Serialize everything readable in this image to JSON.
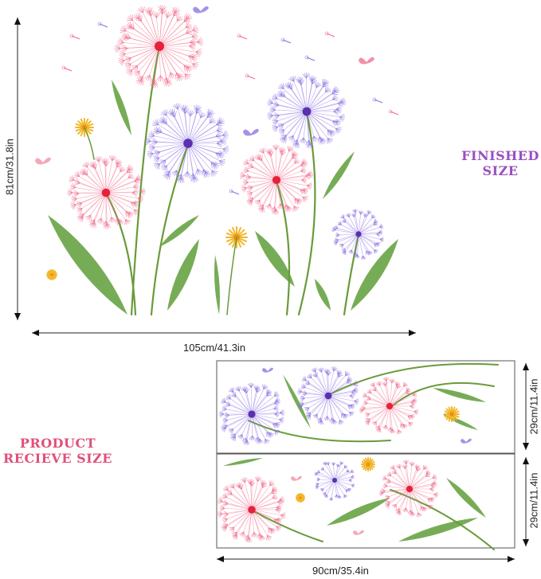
{
  "finished": {
    "label_line1": "FINISHED",
    "label_line2": "SIZE",
    "height_label": "81cm/31.8in",
    "width_label": "105cm/41.3in",
    "label_color": "#9b4fc0"
  },
  "received": {
    "label_line1": "PRODUCT",
    "label_line2": "RECIEVE SIZE",
    "sheet1_height_label": "29cm/11.4in",
    "sheet2_height_label": "29cm/11.4in",
    "width_label": "90cm/35.4in",
    "label_color": "#e0507a",
    "sheet_count": 2
  },
  "colors": {
    "pink": "#f06a8a",
    "red_center": "#e8203a",
    "purple": "#8a6ee0",
    "purple_center": "#5a2fb0",
    "leaf": "#5f9e3a",
    "stem": "#6a9a3a",
    "yellow": "#f2b72a"
  }
}
